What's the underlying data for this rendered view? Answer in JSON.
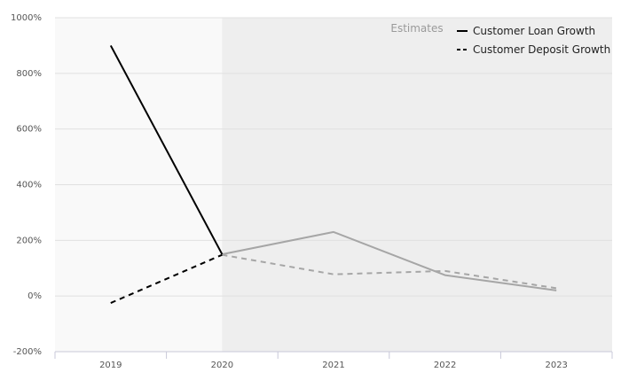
{
  "chart_data": {
    "type": "line",
    "categories": [
      "2019",
      "2020",
      "2021",
      "2022",
      "2023"
    ],
    "y_ticks": [
      "1000%",
      "800%",
      "600%",
      "400%",
      "200%",
      "0%",
      "-200%"
    ],
    "ylim": [
      -200,
      1000
    ],
    "grid": true,
    "legend_position": "top-right",
    "estimates_label": "Estimates",
    "estimates_start_category": "2020",
    "series": [
      {
        "name": "Customer Loan Growth",
        "style": "solid",
        "color": "#000000",
        "estimate_color": "#a6a6a6",
        "values": [
          900,
          150,
          230,
          75,
          20
        ]
      },
      {
        "name": "Customer Deposit Growth",
        "style": "dashed",
        "color": "#000000",
        "estimate_color": "#a6a6a6",
        "values": [
          -25,
          148,
          78,
          90,
          28
        ]
      }
    ],
    "colors": {
      "actual_background": "#f9f9f9",
      "estimate_background": "#eeeeee",
      "grid": "#e0e0e0",
      "axis": "#c8c8d8"
    }
  }
}
